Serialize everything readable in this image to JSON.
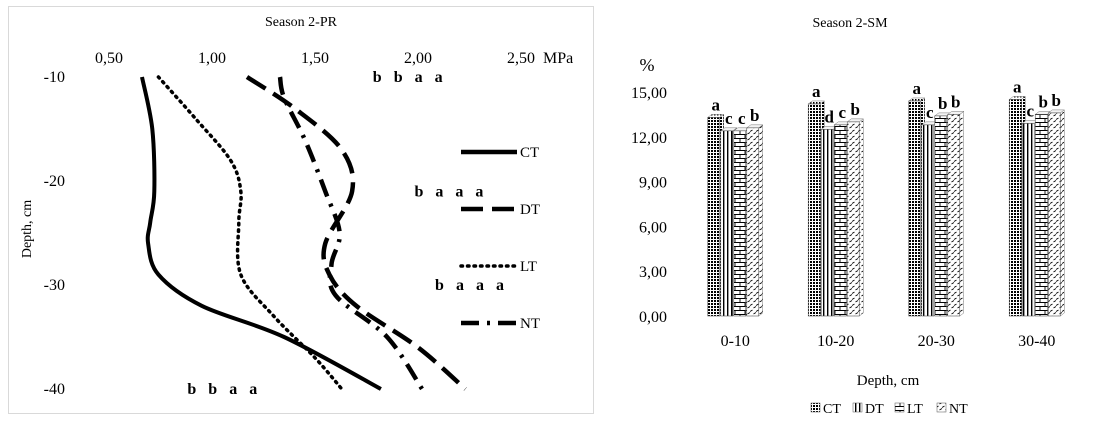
{
  "colors": {
    "line": "#000000",
    "frame": "#d9d9d9",
    "background": "#ffffff"
  },
  "chart_data": [
    {
      "type": "line",
      "title": "Season 2-PR",
      "xlabel": "MPa",
      "ylabel": "Depth, cm",
      "x_axis_position": "top",
      "x_ticks": [
        "0,50",
        "1,00",
        "1,50",
        "2,00",
        "2,50"
      ],
      "y_ticks": [
        "-10",
        "-20",
        "-30",
        "-40"
      ],
      "xlim": [
        0.5,
        2.5
      ],
      "ylim": [
        -40,
        -10
      ],
      "grid": false,
      "legend_position": "right",
      "series": [
        {
          "name": "CT",
          "style": "solid",
          "x": [
            0.66,
            0.71,
            0.72,
            0.7,
            0.69,
            0.74,
            0.95,
            1.35,
            1.82
          ],
          "y": [
            -10,
            -15,
            -21,
            -24,
            -26,
            -29,
            -32,
            -35,
            -40
          ]
        },
        {
          "name": "DT",
          "style": "dashed",
          "x": [
            1.17,
            1.4,
            1.63,
            1.68,
            1.55,
            1.57,
            1.7,
            2.0,
            2.23
          ],
          "y": [
            -10,
            -13,
            -17,
            -21,
            -26,
            -29,
            -32,
            -36,
            -40
          ]
        },
        {
          "name": "LT",
          "style": "dotted",
          "x": [
            0.74,
            0.92,
            1.09,
            1.14,
            1.13,
            1.14,
            1.3,
            1.5,
            1.63
          ],
          "y": [
            -10,
            -14,
            -18,
            -21,
            -24,
            -29,
            -33,
            -37,
            -40
          ]
        },
        {
          "name": "NT",
          "style": "dash-dot",
          "x": [
            1.33,
            1.35,
            1.45,
            1.55,
            1.62,
            1.58,
            1.6,
            1.85,
            2.02
          ],
          "y": [
            -10,
            -12,
            -16,
            -21,
            -25,
            -28,
            -31,
            -35,
            -40
          ]
        }
      ],
      "annotations": [
        {
          "text": "b   b   a   a",
          "x": 1.95,
          "y": -10
        },
        {
          "text": "b   a   a   a",
          "x": 2.15,
          "y": -21
        },
        {
          "text": "b   a   a   a",
          "x": 2.25,
          "y": -30
        },
        {
          "text": "b   b   a   a",
          "x": 1.05,
          "y": -40
        }
      ]
    },
    {
      "type": "bar",
      "title": "Season 2-SM",
      "xlabel": "Depth, cm",
      "ylabel": "%",
      "categories": [
        "0-10",
        "10-20",
        "20-30",
        "30-40"
      ],
      "y_ticks": [
        "0,00",
        "3,00",
        "6,00",
        "9,00",
        "12,00",
        "15,00"
      ],
      "ylim": [
        0,
        15
      ],
      "grid": false,
      "legend_position": "bottom",
      "series": [
        {
          "name": "CT",
          "pattern": "dense-dots",
          "values": [
            13.3,
            14.2,
            14.4,
            14.5
          ],
          "letters": [
            "a",
            "a",
            "a",
            "a"
          ]
        },
        {
          "name": "DT",
          "pattern": "vertical-lines",
          "values": [
            12.4,
            12.5,
            12.8,
            12.9
          ],
          "letters": [
            "c",
            "d",
            "c",
            "c"
          ]
        },
        {
          "name": "LT",
          "pattern": "bricks",
          "values": [
            12.4,
            12.8,
            13.4,
            13.5
          ],
          "letters": [
            "c",
            "c",
            "b",
            "b"
          ]
        },
        {
          "name": "NT",
          "pattern": "diagonal-dashes",
          "values": [
            12.6,
            13.0,
            13.5,
            13.6
          ],
          "letters": [
            "b",
            "b",
            "b",
            "b"
          ]
        }
      ]
    }
  ]
}
